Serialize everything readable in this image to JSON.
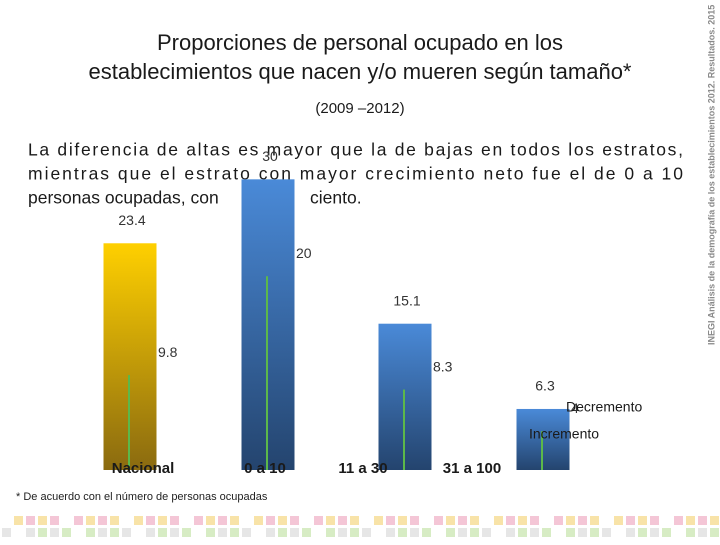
{
  "side_text": "INEGI Análisis de la demografía de los establecimientos 2012. Resultados. 2015",
  "paragraph": {
    "lines": [
      "La diferencia de altas es mayor que la de bajas en todos los estratos,",
      "mientras que el estrato con mayor crecimiento neto fue el de 0 a 10",
      "personas ocupadas, con"
    ],
    "tail": "ciento."
  },
  "chart_data": {
    "type": "bar",
    "title": [
      "Proporciones de personal ocupado en los",
      "establecimientos que nacen y/o mueren según tamaño*"
    ],
    "subtitle": "(2009 –2012)",
    "footnote": "* De acuerdo con el número de personas ocupadas",
    "categories": [
      "Nacional",
      "0 a 10",
      "11 a 30",
      "31 a 100"
    ],
    "series": [
      {
        "name": "Incremento",
        "color": "#4a82c8",
        "point_colors": [
          "#f2c200",
          "#4a86d0",
          "#3f75bb",
          "#3f75bb"
        ],
        "values": [
          23.4,
          30.0,
          15.1,
          6.3
        ]
      },
      {
        "name": "Decremento",
        "color": "#5cb84a",
        "values": [
          9.8,
          20.0,
          8.3,
          4.0
        ]
      }
    ],
    "ylim": [
      0,
      45
    ]
  }
}
